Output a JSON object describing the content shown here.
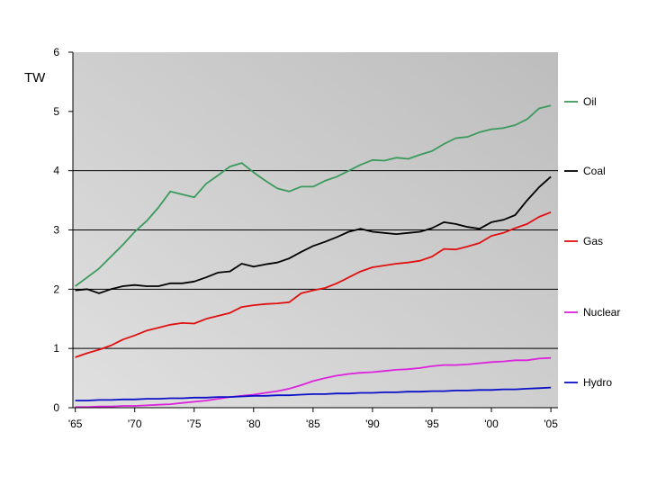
{
  "chart_data": {
    "type": "line",
    "title": "",
    "xlabel": "",
    "ylabel": "",
    "unit_label": "TW",
    "x": [
      1965,
      1966,
      1967,
      1968,
      1969,
      1970,
      1971,
      1972,
      1973,
      1974,
      1975,
      1976,
      1977,
      1978,
      1979,
      1980,
      1981,
      1982,
      1983,
      1984,
      1985,
      1986,
      1987,
      1988,
      1989,
      1990,
      1991,
      1992,
      1993,
      1994,
      1995,
      1996,
      1997,
      1998,
      1999,
      2000,
      2001,
      2002,
      2003,
      2004,
      2005
    ],
    "x_tick_values": [
      1965,
      1970,
      1975,
      1980,
      1985,
      1990,
      1995,
      2000,
      2005
    ],
    "x_tick_labels": [
      "'65",
      "'70",
      "'75",
      "'80",
      "'85",
      "'90",
      "'95",
      "'00",
      "'05"
    ],
    "xlim": [
      1964.8,
      2005.6
    ],
    "ylim": [
      0,
      6
    ],
    "y_ticks": [
      0,
      1,
      2,
      3,
      4,
      5,
      6
    ],
    "gridlines": [
      1,
      2,
      3,
      4
    ],
    "legend_position": "right",
    "plot_background": [
      "#e0e0e0",
      "#bdbdbd"
    ],
    "series": [
      {
        "name": "Oil",
        "color": "#3a9a5b",
        "values": [
          2.05,
          2.2,
          2.35,
          2.55,
          2.75,
          2.97,
          3.15,
          3.38,
          3.65,
          3.6,
          3.55,
          3.78,
          3.92,
          4.07,
          4.13,
          3.97,
          3.83,
          3.7,
          3.65,
          3.73,
          3.73,
          3.83,
          3.9,
          4.0,
          4.1,
          4.18,
          4.17,
          4.22,
          4.2,
          4.27,
          4.33,
          4.45,
          4.55,
          4.57,
          4.65,
          4.7,
          4.72,
          4.77,
          4.87,
          5.05,
          5.1
        ]
      },
      {
        "name": "Coal",
        "color": "#000000",
        "values": [
          1.98,
          2.0,
          1.93,
          2.0,
          2.05,
          2.07,
          2.05,
          2.05,
          2.1,
          2.1,
          2.13,
          2.2,
          2.28,
          2.3,
          2.43,
          2.38,
          2.42,
          2.45,
          2.52,
          2.63,
          2.73,
          2.8,
          2.88,
          2.97,
          3.02,
          2.97,
          2.95,
          2.93,
          2.95,
          2.97,
          3.03,
          3.13,
          3.1,
          3.05,
          3.02,
          3.13,
          3.17,
          3.25,
          3.5,
          3.72,
          3.9
        ]
      },
      {
        "name": "Gas",
        "color": "#e01010",
        "values": [
          0.85,
          0.92,
          0.98,
          1.05,
          1.15,
          1.22,
          1.3,
          1.35,
          1.4,
          1.43,
          1.42,
          1.5,
          1.55,
          1.6,
          1.7,
          1.73,
          1.75,
          1.76,
          1.78,
          1.93,
          1.98,
          2.02,
          2.1,
          2.2,
          2.3,
          2.37,
          2.4,
          2.43,
          2.45,
          2.48,
          2.55,
          2.68,
          2.67,
          2.72,
          2.78,
          2.9,
          2.95,
          3.03,
          3.1,
          3.22,
          3.3
        ]
      },
      {
        "name": "Nuclear",
        "color": "#dd22dd",
        "values": [
          0.01,
          0.01,
          0.02,
          0.02,
          0.03,
          0.03,
          0.04,
          0.05,
          0.06,
          0.08,
          0.1,
          0.12,
          0.15,
          0.18,
          0.2,
          0.22,
          0.25,
          0.28,
          0.32,
          0.38,
          0.45,
          0.5,
          0.54,
          0.57,
          0.59,
          0.6,
          0.62,
          0.64,
          0.65,
          0.67,
          0.7,
          0.72,
          0.72,
          0.73,
          0.75,
          0.77,
          0.78,
          0.8,
          0.8,
          0.83,
          0.84
        ]
      },
      {
        "name": "Hydro",
        "color": "#0a10c8",
        "values": [
          0.12,
          0.12,
          0.13,
          0.13,
          0.14,
          0.14,
          0.15,
          0.15,
          0.16,
          0.16,
          0.17,
          0.17,
          0.18,
          0.18,
          0.19,
          0.2,
          0.2,
          0.21,
          0.21,
          0.22,
          0.23,
          0.23,
          0.24,
          0.24,
          0.25,
          0.25,
          0.26,
          0.26,
          0.27,
          0.27,
          0.28,
          0.28,
          0.29,
          0.29,
          0.3,
          0.3,
          0.31,
          0.31,
          0.32,
          0.33,
          0.34
        ]
      }
    ]
  }
}
